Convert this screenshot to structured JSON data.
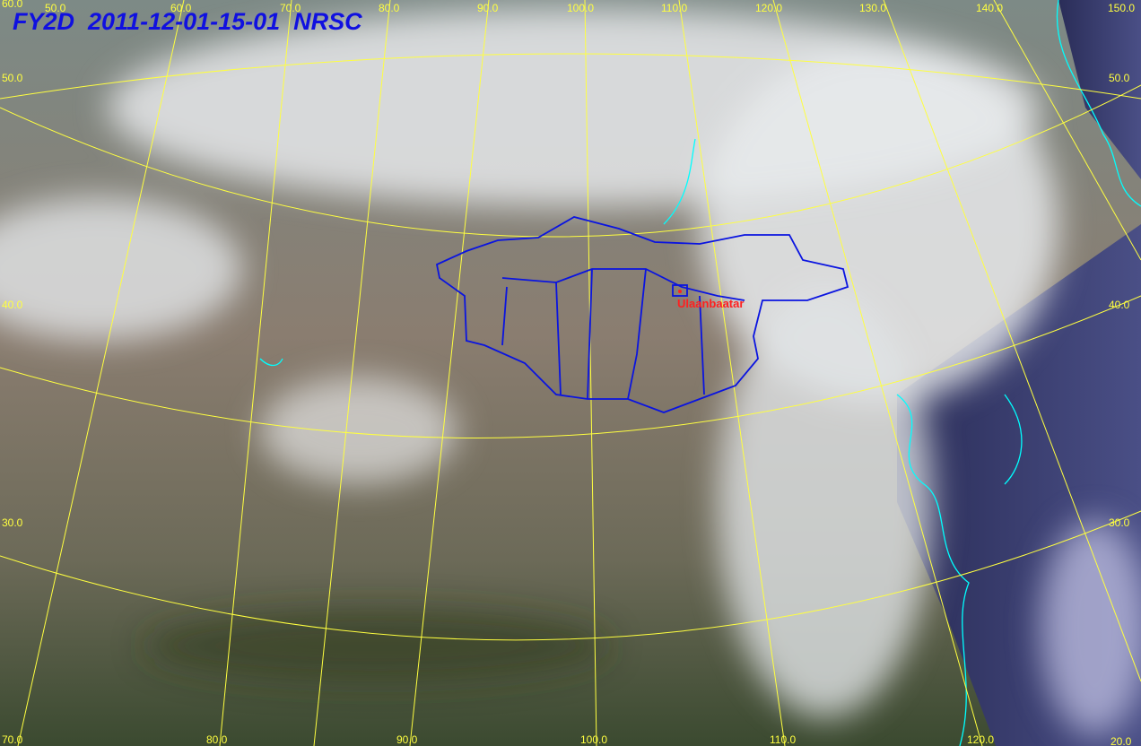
{
  "header": {
    "title": "FY2D  2011-12-01-15-01  NRSC"
  },
  "labels": {
    "top": [
      "60.0",
      "50.0",
      "60.0",
      "70.0",
      "80.0",
      "90.0",
      "100.0",
      "110.0",
      "120.0",
      "130.0",
      "140.0",
      "150.0"
    ],
    "left": [
      "50.0",
      "40.0",
      "30.0",
      "70.0"
    ],
    "right": [
      "50.0",
      "40.0",
      "30.0",
      "20.0"
    ],
    "bottom": [
      "80.0",
      "90.0",
      "100.0",
      "110.0",
      "120.0"
    ]
  },
  "city": {
    "name": "Ulaanbaatar"
  }
}
